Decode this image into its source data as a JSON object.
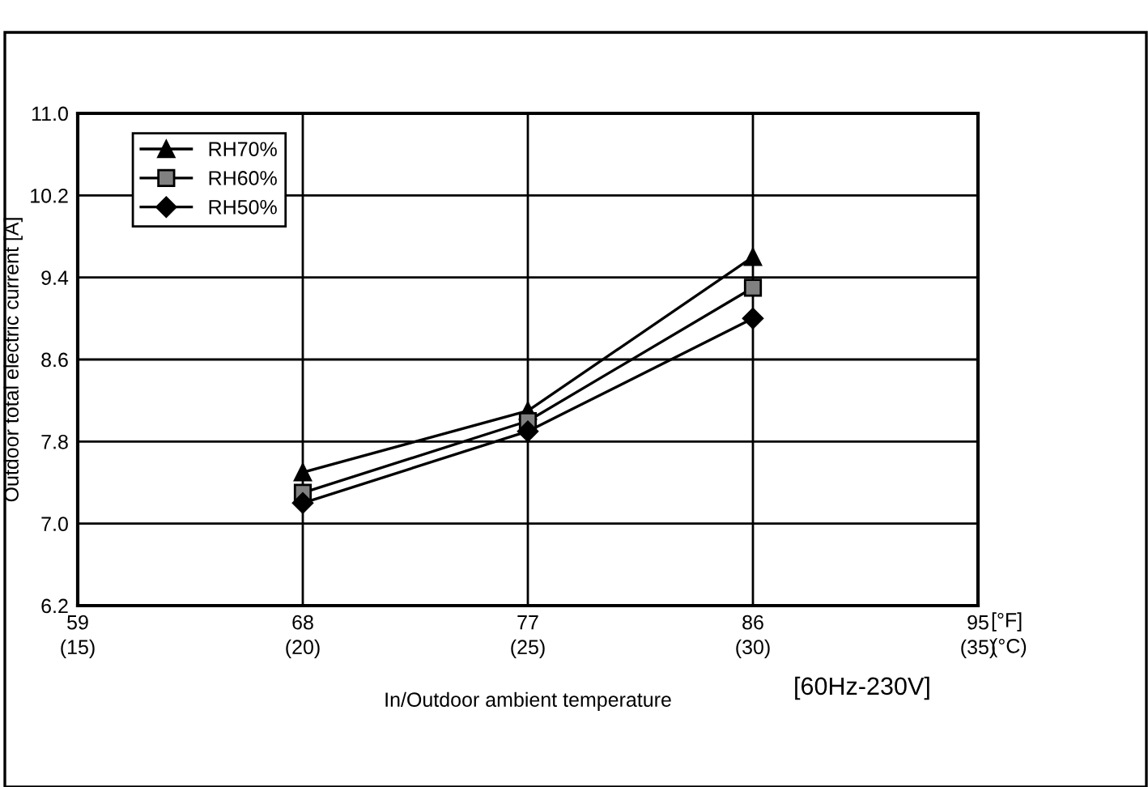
{
  "chart_data": {
    "type": "line",
    "xlabel": "In/Outdoor ambient temperature",
    "ylabel": "Outdoor total electric current [A]",
    "x": [
      68,
      77,
      86
    ],
    "series": [
      {
        "name": "RH70%",
        "color": "#000000",
        "marker": "triangle",
        "values": [
          7.5,
          8.1,
          9.6
        ]
      },
      {
        "name": "RH60%",
        "color": "#808080",
        "marker": "square",
        "values": [
          7.3,
          8.0,
          9.3
        ]
      },
      {
        "name": "RH50%",
        "color": "#000000",
        "marker": "diamond",
        "values": [
          7.2,
          7.9,
          9.0
        ]
      }
    ],
    "xlim": [
      59,
      95
    ],
    "xticks": [
      59,
      68,
      77,
      86,
      95
    ],
    "x2lim": [
      15,
      35
    ],
    "x2ticks": [
      {
        "value": 15,
        "label": "(15)"
      },
      {
        "value": 20,
        "label": "(20)"
      },
      {
        "value": 25,
        "label": "(25)"
      },
      {
        "value": 30,
        "label": "(30)"
      },
      {
        "value": 35,
        "label": "(35)"
      }
    ],
    "ylim": [
      6.2,
      11.0
    ],
    "yticks": [
      6.2,
      {
        "value": 7.0,
        "label": "7.0"
      },
      7.8,
      8.6,
      9.4,
      10.2,
      {
        "value": 11.0,
        "label": "11.0"
      }
    ],
    "grid": true,
    "legend": "top left",
    "line_style": "solid",
    "annotations": [
      "[°F]",
      "(°C)",
      "[60Hz-230V]"
    ]
  }
}
